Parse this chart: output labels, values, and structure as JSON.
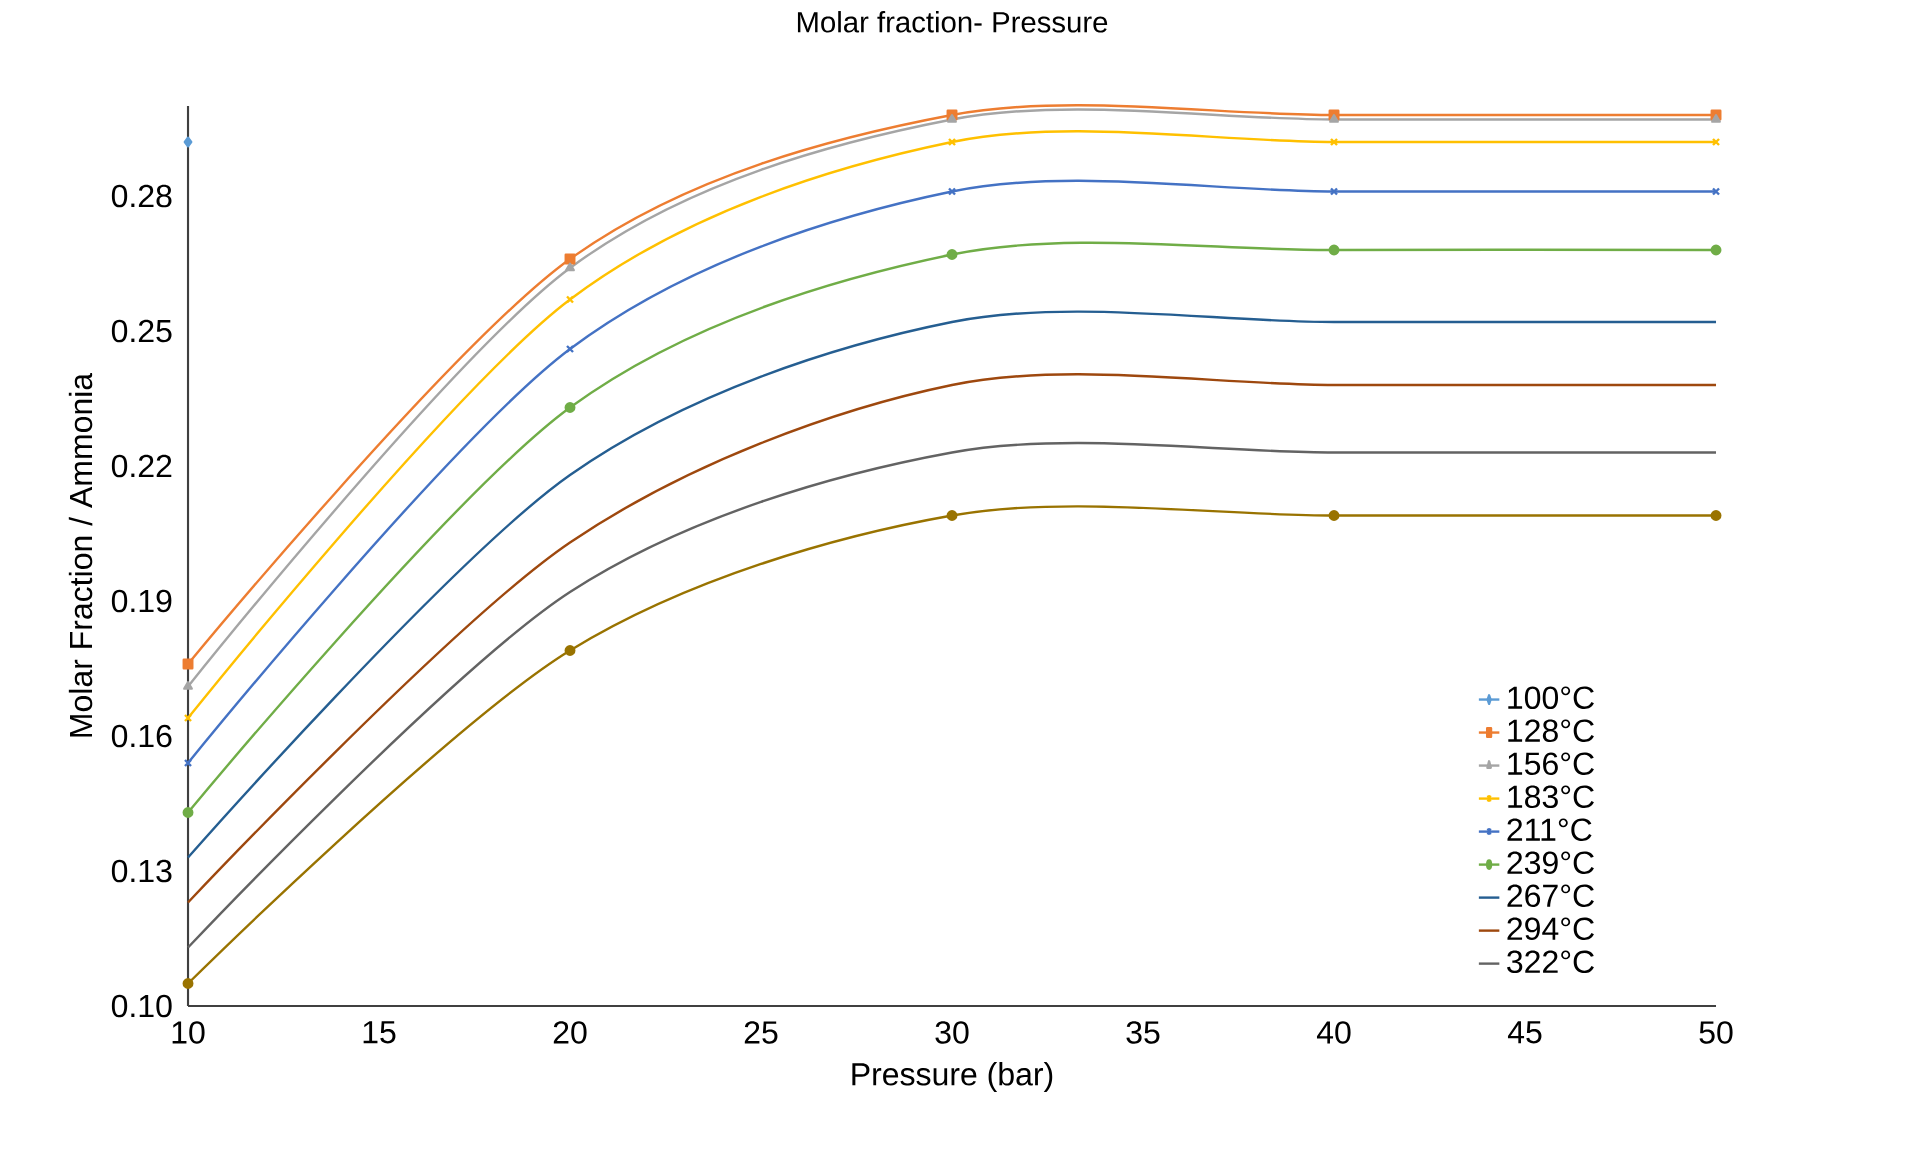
{
  "chart_data": {
    "type": "line",
    "title": "Molar fraction- Pressure",
    "xlabel": "Pressure (bar)",
    "ylabel": "Molar Fraction / Ammonia",
    "x": [
      10,
      20,
      30,
      40,
      50
    ],
    "xlim": [
      10,
      50
    ],
    "xticks": [
      10,
      15,
      20,
      25,
      30,
      35,
      40,
      45,
      50
    ],
    "ylim": [
      0.1,
      0.3
    ],
    "yticks": [
      {
        "value": 0.1,
        "label": "0.10"
      },
      {
        "value": 0.13,
        "label": "0.13"
      },
      {
        "value": 0.16,
        "label": "0.16"
      },
      {
        "value": 0.19,
        "label": "0.19"
      },
      {
        "value": 0.22,
        "label": "0.22"
      },
      {
        "value": 0.25,
        "label": "0.25"
      },
      {
        "value": 0.28,
        "label": "0.28"
      }
    ],
    "legend": "bottom right",
    "grid": false,
    "series": [
      {
        "name": "100°C",
        "color": "#5b9bd5",
        "marker": "diamond",
        "values": [
          0.292,
          null,
          null,
          null,
          null
        ]
      },
      {
        "name": "128°C",
        "color": "#ed7d31",
        "marker": "square",
        "values": [
          0.176,
          0.266,
          0.298,
          0.298,
          0.298
        ]
      },
      {
        "name": "156°C",
        "color": "#a5a5a5",
        "marker": "triangle",
        "values": [
          0.171,
          0.264,
          0.297,
          0.297,
          0.297
        ]
      },
      {
        "name": "183°C",
        "color": "#ffc000",
        "marker": "cross",
        "values": [
          0.164,
          0.257,
          0.292,
          0.292,
          0.292
        ]
      },
      {
        "name": "211°C",
        "color": "#4472c4",
        "marker": "cross",
        "values": [
          0.154,
          0.246,
          0.281,
          0.281,
          0.281
        ]
      },
      {
        "name": "239°C",
        "color": "#70ad47",
        "marker": "circle",
        "values": [
          0.143,
          0.233,
          0.267,
          0.268,
          0.268
        ]
      },
      {
        "name": "267°C",
        "color": "#255e91",
        "marker": "none",
        "values": [
          0.133,
          0.218,
          0.252,
          0.252,
          0.252
        ]
      },
      {
        "name": "294°C",
        "color": "#9e480e",
        "marker": "none",
        "values": [
          0.123,
          0.203,
          0.238,
          0.238,
          0.238
        ]
      },
      {
        "name": "322°C",
        "color": "#636363",
        "marker": "none",
        "values": [
          0.113,
          0.192,
          0.223,
          0.223,
          0.223
        ]
      },
      {
        "color": "#997300",
        "marker": "circle",
        "values": [
          0.105,
          0.179,
          0.209,
          0.209,
          0.209
        ]
      }
    ]
  }
}
